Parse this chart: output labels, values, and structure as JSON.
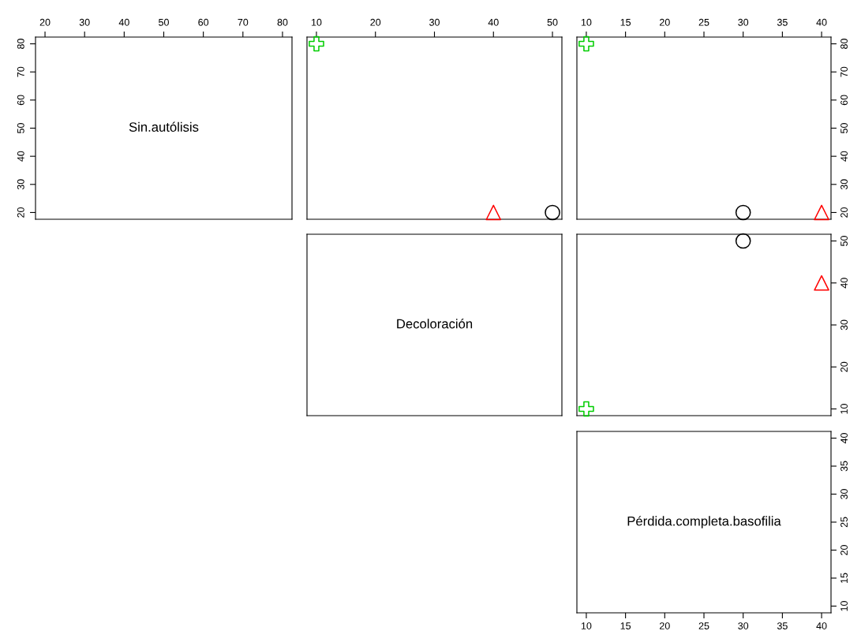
{
  "chart_data": [
    {
      "type": "scatter",
      "annotations": [
        "Sin.autólisis"
      ],
      "xlim": [
        17.6,
        82.4
      ],
      "xticks": [
        20,
        30,
        40,
        50,
        60,
        70,
        80
      ],
      "ylim": [
        17.6,
        82.4
      ],
      "yticks": [
        20,
        30,
        40,
        50,
        60,
        70,
        80
      ]
    },
    {
      "type": "scatter",
      "xlim": [
        8.4,
        51.6
      ],
      "xticks": [
        10,
        20,
        30,
        40,
        50
      ],
      "ylim": [
        17.6,
        82.4
      ],
      "tick_labels": "x",
      "series": [
        {
          "color": "#000000",
          "marker": "circle",
          "x": [
            50
          ],
          "values": [
            20
          ]
        },
        {
          "color": "#ff0000",
          "marker": "triangle",
          "x": [
            40
          ],
          "values": [
            20
          ]
        },
        {
          "color": "#00cd00",
          "marker": "cross",
          "x": [
            10
          ],
          "values": [
            80
          ]
        }
      ]
    },
    {
      "type": "scatter",
      "xlim": [
        8.8,
        41.2
      ],
      "xticks": [
        10,
        15,
        20,
        25,
        30,
        35,
        40
      ],
      "ylim": [
        17.6,
        82.4
      ],
      "yticks": [
        20,
        30,
        40,
        50,
        60,
        70,
        80
      ],
      "series": [
        {
          "color": "#000000",
          "marker": "circle",
          "x": [
            30
          ],
          "values": [
            20
          ]
        },
        {
          "color": "#ff0000",
          "marker": "triangle",
          "x": [
            40
          ],
          "values": [
            20
          ]
        },
        {
          "color": "#00cd00",
          "marker": "cross",
          "x": [
            10
          ],
          "values": [
            80
          ]
        }
      ]
    },
    {
      "type": "other",
      "annotations": [
        "Decoloración"
      ]
    },
    {
      "type": "scatter",
      "xlim": [
        8.8,
        41.2
      ],
      "ylim": [
        8.4,
        51.6
      ],
      "yticks": [
        10,
        20,
        30,
        40,
        50
      ],
      "tick_labels": "y",
      "series": [
        {
          "color": "#000000",
          "marker": "circle",
          "x": [
            30
          ],
          "values": [
            50
          ]
        },
        {
          "color": "#ff0000",
          "marker": "triangle",
          "x": [
            40
          ],
          "values": [
            40
          ]
        },
        {
          "color": "#00cd00",
          "marker": "cross",
          "x": [
            10
          ],
          "values": [
            10
          ]
        }
      ]
    },
    {
      "type": "scatter",
      "annotations": [
        "Pérdida.completa.basofilia"
      ],
      "xlim": [
        8.8,
        41.2
      ],
      "xticks": [
        10,
        15,
        20,
        25,
        30,
        35,
        40
      ],
      "ylim": [
        8.8,
        41.2
      ],
      "yticks": [
        10,
        15,
        20,
        25,
        30,
        35,
        40
      ]
    }
  ]
}
